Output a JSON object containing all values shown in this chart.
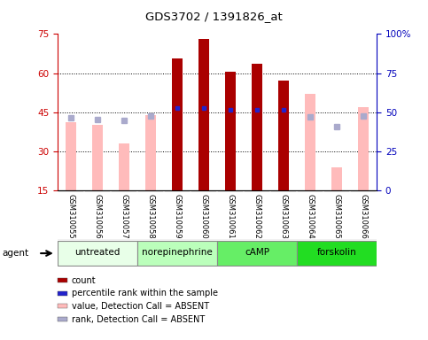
{
  "title": "GDS3702 / 1391826_at",
  "samples": [
    "GSM310055",
    "GSM310056",
    "GSM310057",
    "GSM310058",
    "GSM310059",
    "GSM310060",
    "GSM310061",
    "GSM310062",
    "GSM310063",
    "GSM310064",
    "GSM310065",
    "GSM310066"
  ],
  "groups": [
    {
      "label": "untreated",
      "indices": [
        0,
        1,
        2
      ],
      "color": "#e8ffe8"
    },
    {
      "label": "norepinephrine",
      "indices": [
        3,
        4,
        5
      ],
      "color": "#bbffbb"
    },
    {
      "label": "cAMP",
      "indices": [
        6,
        7,
        8
      ],
      "color": "#66ee66"
    },
    {
      "label": "forskolin",
      "indices": [
        9,
        10,
        11
      ],
      "color": "#22dd22"
    }
  ],
  "count_bars": {
    "values": [
      null,
      null,
      null,
      null,
      65.5,
      73.0,
      60.5,
      63.5,
      57.0,
      null,
      null,
      null
    ],
    "color": "#aa0000"
  },
  "value_absent_bars": {
    "values": [
      41.0,
      40.0,
      33.0,
      44.0,
      null,
      null,
      null,
      null,
      null,
      52.0,
      24.0,
      47.0
    ],
    "color": "#ffbbbb"
  },
  "percentile_rank": {
    "values": [
      null,
      null,
      null,
      null,
      52.5,
      52.5,
      51.5,
      51.5,
      51.5,
      null,
      null,
      null
    ],
    "color": "#2222cc"
  },
  "rank_absent": {
    "values": [
      46.5,
      45.5,
      44.5,
      47.5,
      null,
      null,
      null,
      null,
      null,
      47.0,
      41.0,
      47.5
    ],
    "color": "#aaaacc"
  },
  "ylim_left": [
    15,
    75
  ],
  "ylim_right": [
    0,
    100
  ],
  "yticks_left": [
    15,
    30,
    45,
    60,
    75
  ],
  "yticks_right": [
    0,
    25,
    50,
    75,
    100
  ],
  "ytick_labels_right": [
    "0",
    "25",
    "50",
    "75",
    "100%"
  ],
  "left_axis_color": "#cc0000",
  "right_axis_color": "#0000bb",
  "grid_dotted_at": [
    30,
    45,
    60
  ],
  "legend_items": [
    {
      "label": "count",
      "color": "#aa0000"
    },
    {
      "label": "percentile rank within the sample",
      "color": "#2222cc"
    },
    {
      "label": "value, Detection Call = ABSENT",
      "color": "#ffbbbb"
    },
    {
      "label": "rank, Detection Call = ABSENT",
      "color": "#aaaacc"
    }
  ],
  "bar_width": 0.4,
  "agent_label": "agent"
}
